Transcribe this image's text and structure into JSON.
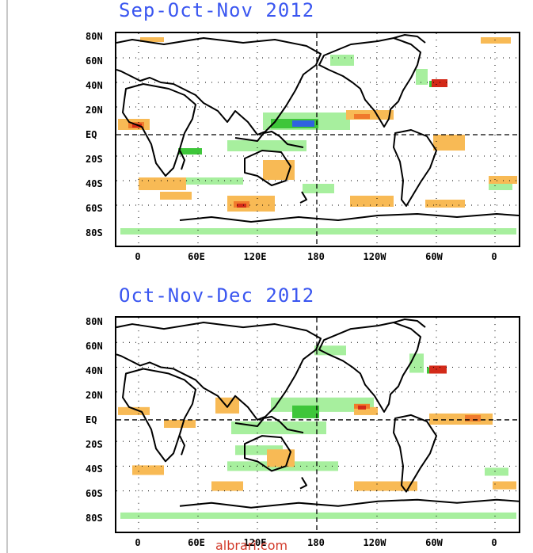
{
  "panels": [
    {
      "title": "Sep-Oct-Nov 2012",
      "lat_labels": [
        "80N",
        "60N",
        "40N",
        "20N",
        "EQ",
        "20S",
        "40S",
        "60S",
        "80S"
      ],
      "lon_labels": [
        "0",
        "60E",
        "120E",
        "180",
        "120W",
        "60W",
        "0"
      ],
      "anomalies": [
        {
          "type": "positive",
          "level": 1,
          "area": "eastern tropical Atlantic off west Africa"
        },
        {
          "type": "positive",
          "level": 2,
          "area": "Gulf of Guinea"
        },
        {
          "type": "negative",
          "level": 1,
          "area": "central equatorial Pacific"
        },
        {
          "type": "negative",
          "level": 2,
          "area": "equatorial Pacific near dateline"
        },
        {
          "type": "positive",
          "level": 3,
          "area": "northwest Atlantic off US east coast"
        },
        {
          "type": "positive",
          "level": 1,
          "area": "Australia and Indian Ocean"
        },
        {
          "type": "positive",
          "level": 3,
          "area": "Southern Ocean south of Australia"
        }
      ]
    },
    {
      "title": "Oct-Nov-Dec 2012",
      "lat_labels": [
        "80N",
        "60N",
        "40N",
        "20N",
        "EQ",
        "20S",
        "40S",
        "60S",
        "80S"
      ],
      "lon_labels": [
        "0",
        "60E",
        "120E",
        "180",
        "120W",
        "60W",
        "0"
      ],
      "anomalies": [
        {
          "type": "positive",
          "level": 1,
          "area": "tropical Atlantic"
        },
        {
          "type": "negative",
          "level": 2,
          "area": "western equatorial Pacific"
        },
        {
          "type": "positive",
          "level": 3,
          "area": "eastern equatorial Pacific"
        },
        {
          "type": "positive",
          "level": 3,
          "area": "northwest Atlantic off US east coast"
        },
        {
          "type": "positive",
          "level": 1,
          "area": "Australia"
        }
      ]
    }
  ],
  "legend_colors": {
    "negative_1": "#a7ef9e",
    "negative_2": "#3ec63a",
    "negative_3": "#2f62e0",
    "positive_1": "#f8ba55",
    "positive_2": "#f07a2c",
    "positive_3": "#d32a19"
  },
  "watermark": "albrari.com"
}
